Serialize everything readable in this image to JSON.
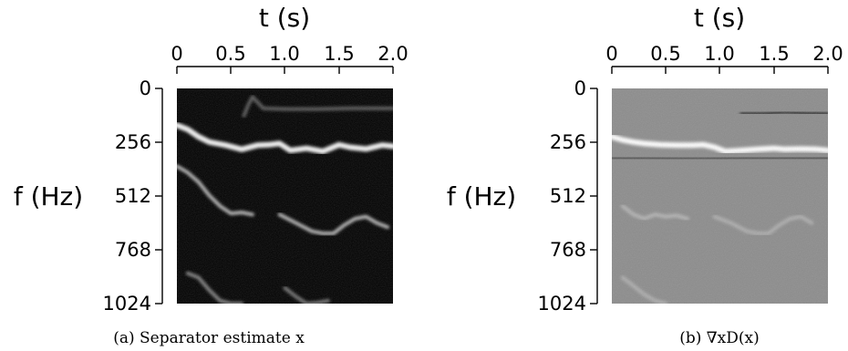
{
  "chart_data": [
    {
      "type": "heatmap",
      "caption": "(a) Separator estimate x",
      "xlabel": "t (s)",
      "ylabel": "f (Hz)",
      "x_ticks": [
        "0",
        "0.5",
        "1.0",
        "1.5",
        "2.0"
      ],
      "y_ticks": [
        "0",
        "256",
        "512",
        "768",
        "1024"
      ],
      "xlim": [
        0,
        2.0
      ],
      "ylim": [
        0,
        1024
      ],
      "x_axis_position": "top",
      "y_axis_inverted": true,
      "colormap": "grayscale",
      "background_color": "#000000",
      "tracks": [
        {
          "t": [
            0.0,
            0.1,
            0.2,
            0.3,
            0.45,
            0.6,
            0.75,
            0.85,
            0.95,
            1.05,
            1.2,
            1.35,
            1.5,
            1.6,
            1.75,
            1.9,
            2.0
          ],
          "f": [
            175,
            195,
            230,
            255,
            270,
            290,
            270,
            268,
            262,
            295,
            285,
            300,
            268,
            280,
            288,
            270,
            275
          ],
          "intensity": 0.95
        },
        {
          "t": [
            0.0,
            0.1,
            0.2,
            0.3,
            0.4,
            0.5,
            0.6,
            0.7
          ],
          "f": [
            370,
            400,
            445,
            510,
            560,
            595,
            590,
            600
          ],
          "intensity": 0.7
        },
        {
          "t": [
            0.95,
            1.1,
            1.25,
            1.35,
            1.45,
            1.55,
            1.65,
            1.75,
            1.85,
            1.95
          ],
          "f": [
            600,
            640,
            680,
            690,
            690,
            650,
            620,
            610,
            640,
            660
          ],
          "intensity": 0.7
        },
        {
          "t": [
            0.1,
            0.2,
            0.3,
            0.4,
            0.5,
            0.6
          ],
          "f": [
            880,
            900,
            960,
            1010,
            1024,
            1024
          ],
          "intensity": 0.5
        },
        {
          "t": [
            1.0,
            1.1,
            1.2,
            1.3,
            1.4
          ],
          "f": [
            950,
            990,
            1024,
            1020,
            1010
          ],
          "intensity": 0.45
        },
        {
          "t": [
            0.62,
            0.66,
            0.7,
            0.8,
            1.0,
            1.3,
            1.6,
            2.0
          ],
          "f": [
            130,
            80,
            40,
            95,
            98,
            98,
            95,
            95
          ],
          "intensity": 0.35
        }
      ]
    },
    {
      "type": "heatmap",
      "caption": "(b) ∇xD(x)",
      "xlabel": "t (s)",
      "ylabel": "f (Hz)",
      "x_ticks": [
        "0",
        "0.5",
        "1.0",
        "1.5",
        "2.0"
      ],
      "y_ticks": [
        "0",
        "256",
        "512",
        "768",
        "1024"
      ],
      "xlim": [
        0,
        2.0
      ],
      "ylim": [
        0,
        1024
      ],
      "x_axis_position": "top",
      "y_axis_inverted": true,
      "colormap": "grayscale",
      "background_color": "#8c8c8c",
      "tracks": [
        {
          "t": [
            0.0,
            0.1,
            0.2,
            0.3,
            0.45,
            0.6,
            0.75,
            0.85,
            0.95,
            1.05,
            1.2,
            1.35,
            1.5,
            1.6,
            1.75,
            1.9,
            2.0
          ],
          "f": [
            230,
            245,
            255,
            262,
            268,
            270,
            270,
            268,
            280,
            300,
            295,
            290,
            285,
            290,
            288,
            290,
            295
          ],
          "intensity": 1.0
        },
        {
          "t": [
            0.0,
            0.3,
            0.6,
            0.9,
            1.2,
            1.5,
            1.8,
            2.0
          ],
          "f": [
            330,
            330,
            335,
            335,
            330,
            330,
            330,
            330
          ],
          "intensity": -0.6
        },
        {
          "t": [
            1.2,
            1.4,
            1.6,
            1.8,
            2.0
          ],
          "f": [
            120,
            120,
            112,
            118,
            120
          ],
          "intensity": -0.8
        },
        {
          "t": [
            0.1,
            0.2,
            0.3,
            0.4,
            0.5,
            0.6,
            0.7
          ],
          "f": [
            560,
            600,
            620,
            600,
            610,
            605,
            620
          ],
          "intensity": 0.35
        },
        {
          "t": [
            0.95,
            1.1,
            1.25,
            1.35,
            1.45,
            1.55,
            1.65,
            1.75,
            1.85
          ],
          "f": [
            610,
            640,
            680,
            690,
            690,
            650,
            620,
            610,
            640
          ],
          "intensity": 0.3
        },
        {
          "t": [
            0.1,
            0.2,
            0.3,
            0.4,
            0.5
          ],
          "f": [
            900,
            940,
            980,
            1010,
            1024
          ],
          "intensity": 0.3
        }
      ]
    }
  ]
}
